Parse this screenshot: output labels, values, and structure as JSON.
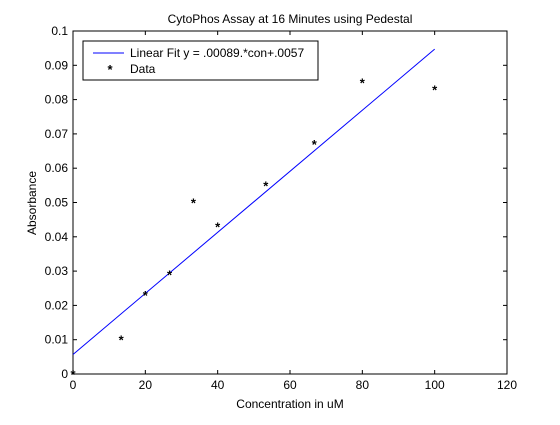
{
  "chart_data": {
    "type": "scatter",
    "title": "CytoPhos Assay at 16 Minutes using Pedestal",
    "xlabel": "Concentration in uM",
    "ylabel": "Absorbance",
    "xlim": [
      0,
      120
    ],
    "ylim": [
      0,
      0.1
    ],
    "x_ticks": [
      "0",
      "20",
      "40",
      "60",
      "80",
      "100",
      "120"
    ],
    "y_ticks": [
      "0",
      "0.01",
      "0.02",
      "0.03",
      "0.04",
      "0.05",
      "0.06",
      "0.07",
      "0.08",
      "0.09",
      "0.1"
    ],
    "grid": false,
    "legend_position": "top-left",
    "series": [
      {
        "name": "Linear Fit y = .00089.*con+.0057",
        "kind": "line",
        "color": "#0000ff",
        "x": [
          0,
          100
        ],
        "y": [
          0.0057,
          0.0947
        ]
      },
      {
        "name": "Data",
        "kind": "marker",
        "marker": "*",
        "color": "#008000",
        "x": [
          0,
          13.3,
          20,
          26.7,
          33.3,
          40,
          53.3,
          66.7,
          80,
          100
        ],
        "y": [
          0.0,
          0.01,
          0.023,
          0.029,
          0.05,
          0.043,
          0.055,
          0.067,
          0.085,
          0.083
        ]
      }
    ]
  }
}
